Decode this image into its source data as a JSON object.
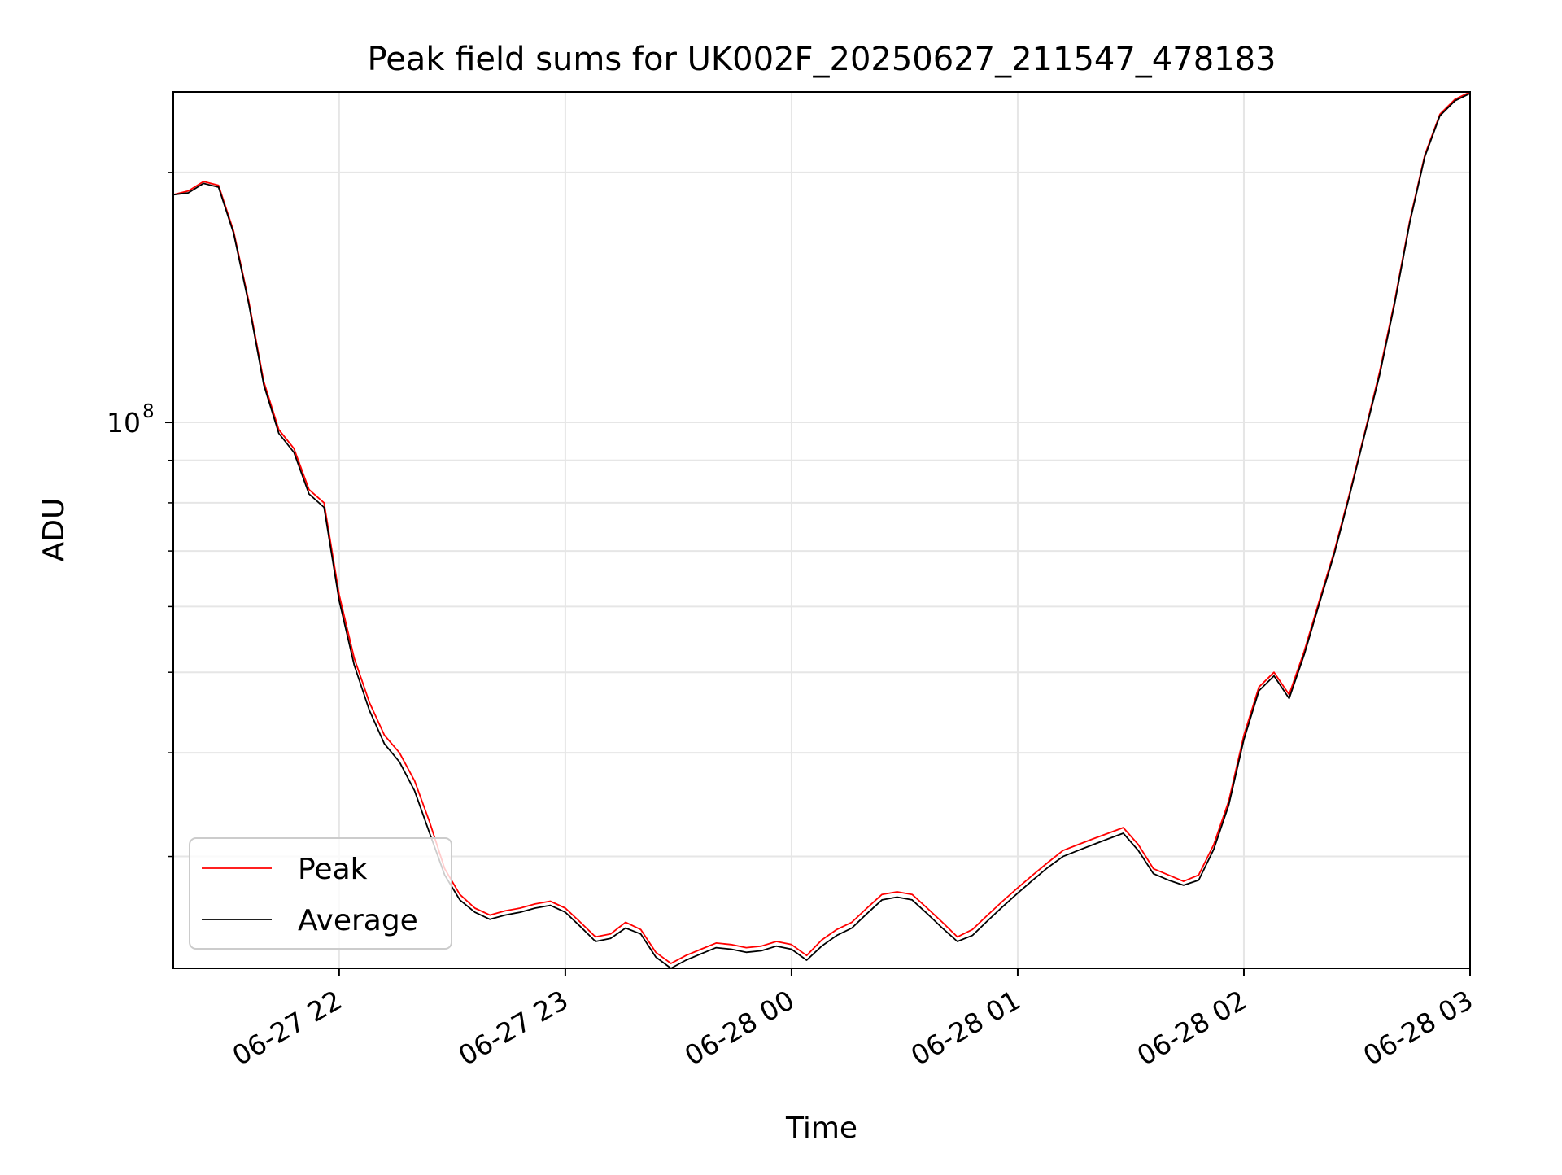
{
  "chart_data": {
    "type": "line",
    "title": "Peak field sums for UK002F_20250627_211547_478183",
    "xlabel": "Time",
    "ylabel": "ADU",
    "x_range": [
      "2025-06-27 21:16",
      "2025-06-28 03:00"
    ],
    "y_range": [
      22000000,
      250000000
    ],
    "y_scale": "log",
    "grid": true,
    "legend_position": "lower-left",
    "x_ticks": [
      {
        "t": "2025-06-27 22:00",
        "label": "06-27 22"
      },
      {
        "t": "2025-06-27 23:00",
        "label": "06-27 23"
      },
      {
        "t": "2025-06-28 00:00",
        "label": "06-28 00"
      },
      {
        "t": "2025-06-28 01:00",
        "label": "06-28 01"
      },
      {
        "t": "2025-06-28 02:00",
        "label": "06-28 02"
      },
      {
        "t": "2025-06-28 03:00",
        "label": "06-28 03"
      }
    ],
    "y_major_ticks": [
      {
        "value": 100000000,
        "label_base": "10",
        "label_exp": "8"
      }
    ],
    "y_minor_ticks": [
      30000000,
      40000000,
      50000000,
      60000000,
      70000000,
      80000000,
      90000000,
      200000000
    ],
    "x": [
      "2025-06-27 21:16",
      "2025-06-27 21:20",
      "2025-06-27 21:24",
      "2025-06-27 21:28",
      "2025-06-27 21:32",
      "2025-06-27 21:36",
      "2025-06-27 21:40",
      "2025-06-27 21:44",
      "2025-06-27 21:48",
      "2025-06-27 21:52",
      "2025-06-27 21:56",
      "2025-06-27 22:00",
      "2025-06-27 22:04",
      "2025-06-27 22:08",
      "2025-06-27 22:12",
      "2025-06-27 22:16",
      "2025-06-27 22:20",
      "2025-06-27 22:24",
      "2025-06-27 22:28",
      "2025-06-27 22:32",
      "2025-06-27 22:36",
      "2025-06-27 22:40",
      "2025-06-27 22:44",
      "2025-06-27 22:48",
      "2025-06-27 22:52",
      "2025-06-27 22:56",
      "2025-06-27 23:00",
      "2025-06-27 23:04",
      "2025-06-27 23:08",
      "2025-06-27 23:12",
      "2025-06-27 23:16",
      "2025-06-27 23:20",
      "2025-06-27 23:24",
      "2025-06-27 23:28",
      "2025-06-27 23:32",
      "2025-06-27 23:36",
      "2025-06-27 23:40",
      "2025-06-27 23:44",
      "2025-06-27 23:48",
      "2025-06-27 23:52",
      "2025-06-27 23:56",
      "2025-06-28 00:00",
      "2025-06-28 00:04",
      "2025-06-28 00:08",
      "2025-06-28 00:12",
      "2025-06-28 00:16",
      "2025-06-28 00:20",
      "2025-06-28 00:24",
      "2025-06-28 00:28",
      "2025-06-28 00:32",
      "2025-06-28 00:36",
      "2025-06-28 00:40",
      "2025-06-28 00:44",
      "2025-06-28 00:48",
      "2025-06-28 00:52",
      "2025-06-28 00:56",
      "2025-06-28 01:00",
      "2025-06-28 01:04",
      "2025-06-28 01:08",
      "2025-06-28 01:12",
      "2025-06-28 01:16",
      "2025-06-28 01:20",
      "2025-06-28 01:24",
      "2025-06-28 01:28",
      "2025-06-28 01:32",
      "2025-06-28 01:36",
      "2025-06-28 01:40",
      "2025-06-28 01:44",
      "2025-06-28 01:48",
      "2025-06-28 01:52",
      "2025-06-28 01:56",
      "2025-06-28 02:00",
      "2025-06-28 02:04",
      "2025-06-28 02:08",
      "2025-06-28 02:12",
      "2025-06-28 02:16",
      "2025-06-28 02:20",
      "2025-06-28 02:24",
      "2025-06-28 02:28",
      "2025-06-28 02:32",
      "2025-06-28 02:36",
      "2025-06-28 02:40",
      "2025-06-28 02:44",
      "2025-06-28 02:48",
      "2025-06-28 02:52",
      "2025-06-28 02:56",
      "2025-06-28 03:00"
    ],
    "series": [
      {
        "name": "Peak",
        "color": "#ff0000",
        "values": [
          188000000,
          190000000,
          195000000,
          193000000,
          170000000,
          140000000,
          112000000,
          98000000,
          93000000,
          83000000,
          80000000,
          62000000,
          52000000,
          46000000,
          42000000,
          40000000,
          37000000,
          33000000,
          29000000,
          27000000,
          26000000,
          25500000,
          25800000,
          26000000,
          26300000,
          26500000,
          26000000,
          25000000,
          24000000,
          24200000,
          25000000,
          24500000,
          23000000,
          22300000,
          22800000,
          23200000,
          23600000,
          23500000,
          23300000,
          23400000,
          23700000,
          23500000,
          22800000,
          23800000,
          24500000,
          25000000,
          26000000,
          27000000,
          27200000,
          27000000,
          26000000,
          25000000,
          24000000,
          24500000,
          25500000,
          26500000,
          27500000,
          28500000,
          29500000,
          30500000,
          31000000,
          31500000,
          32000000,
          32500000,
          31000000,
          29000000,
          28500000,
          28000000,
          28500000,
          31000000,
          35000000,
          42000000,
          48000000,
          50000000,
          47000000,
          53000000,
          61000000,
          70000000,
          82000000,
          97000000,
          115000000,
          140000000,
          175000000,
          210000000,
          235000000,
          245000000,
          250000000
        ]
      },
      {
        "name": "Average",
        "color": "#000000",
        "values": [
          188000000,
          189000000,
          194000000,
          192000000,
          169000000,
          139000000,
          111000000,
          97000000,
          92000000,
          82000000,
          79000000,
          61000000,
          51000000,
          45000000,
          41000000,
          39000000,
          36000000,
          32000000,
          28500000,
          26600000,
          25700000,
          25200000,
          25500000,
          25700000,
          26000000,
          26200000,
          25700000,
          24700000,
          23700000,
          23900000,
          24600000,
          24200000,
          22700000,
          22000000,
          22500000,
          22900000,
          23300000,
          23200000,
          23000000,
          23100000,
          23400000,
          23200000,
          22500000,
          23400000,
          24100000,
          24600000,
          25600000,
          26600000,
          26800000,
          26600000,
          25600000,
          24600000,
          23700000,
          24100000,
          25100000,
          26100000,
          27100000,
          28100000,
          29100000,
          30000000,
          30500000,
          31000000,
          31500000,
          32000000,
          30500000,
          28600000,
          28100000,
          27700000,
          28100000,
          30600000,
          34600000,
          41500000,
          47500000,
          49500000,
          46500000,
          52500000,
          60500000,
          69500000,
          81500000,
          96500000,
          114000000,
          139000000,
          174000000,
          209000000,
          234000000,
          244000000,
          249000000
        ]
      }
    ]
  }
}
